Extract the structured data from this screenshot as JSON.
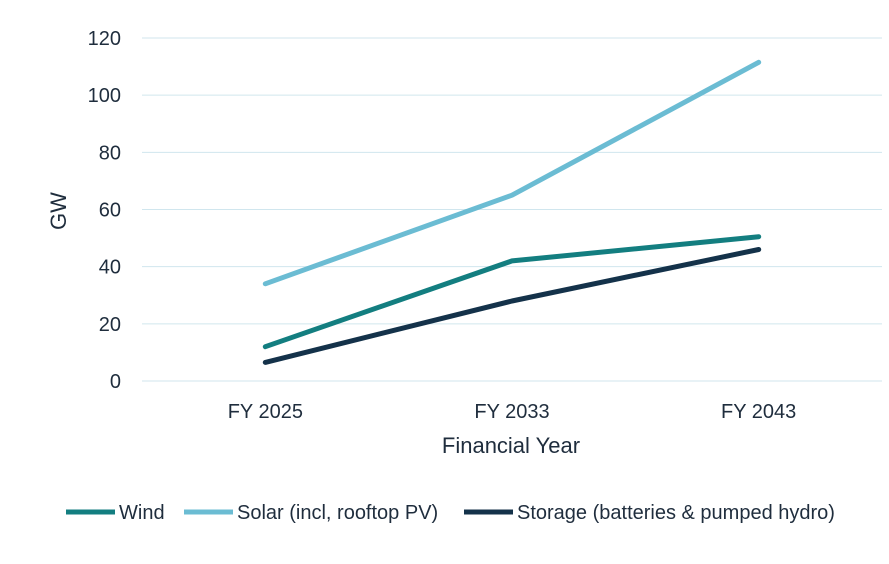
{
  "chart_data": {
    "type": "line",
    "title": "",
    "xlabel": "Financial Year",
    "ylabel": "GW",
    "categories": [
      "FY 2025",
      "FY 2033",
      "FY 2043"
    ],
    "ylim": [
      0,
      120
    ],
    "yticks": [
      0,
      20,
      40,
      60,
      80,
      100,
      120
    ],
    "grid": true,
    "legend_position": "bottom",
    "series": [
      {
        "name": "Wind",
        "values": [
          12,
          42,
          50.5
        ],
        "color": "#137e80"
      },
      {
        "name": "Solar (incl, rooftop PV)",
        "values": [
          34,
          65,
          111.5
        ],
        "color": "#6bbcd3"
      },
      {
        "name": "Storage (batteries & pumped hydro)",
        "values": [
          6.5,
          28,
          46
        ],
        "color": "#14324a"
      }
    ]
  }
}
